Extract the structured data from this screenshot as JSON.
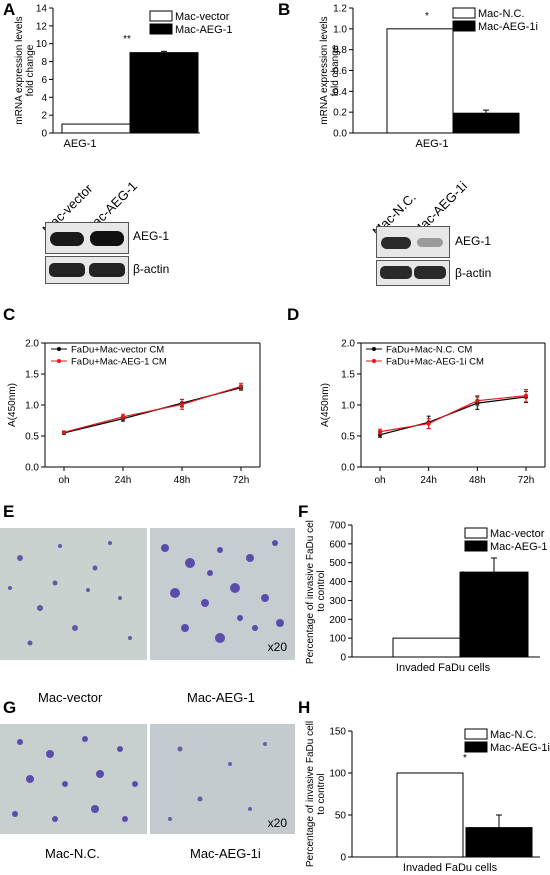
{
  "panels": {
    "A": "A",
    "B": "B",
    "C": "C",
    "D": "D",
    "E": "E",
    "F": "F",
    "G": "G",
    "H": "H"
  },
  "chart_A": {
    "type": "bar",
    "ylabel_1": "mRNA expression levels",
    "ylabel_2": "fold change",
    "xlabel": "AEG-1",
    "ylim": [
      0,
      14
    ],
    "yticks": [
      "0",
      "2",
      "4",
      "6",
      "8",
      "10",
      "12",
      "14"
    ],
    "series": [
      {
        "name": "Mac-vector",
        "value": 1,
        "err": 0
      },
      {
        "name": "Mac-AEG-1",
        "value": 9,
        "err": 0.15
      }
    ],
    "sig": "**"
  },
  "chart_B": {
    "type": "bar",
    "ylabel_1": "mRNA expression levels",
    "ylabel_2": "fold change",
    "xlabel": "AEG-1",
    "ylim": [
      0,
      1.2
    ],
    "yticks": [
      "0.0",
      "0.2",
      "0.4",
      "0.6",
      "0.8",
      "1.0",
      "1.2"
    ],
    "series": [
      {
        "name": "Mac-N.C.",
        "value": 1.0,
        "err": 0
      },
      {
        "name": "Mac-AEG-1i",
        "value": 0.19,
        "err": 0.03
      }
    ],
    "sig": "*"
  },
  "blot_A": {
    "lanes": [
      "Mac-vector",
      "Mac-AEG-1"
    ],
    "rows": [
      "AEG-1",
      "β-actin"
    ]
  },
  "blot_B": {
    "lanes": [
      "Mac-N.C.",
      "Mac-AEG-1i"
    ],
    "rows": [
      "AEG-1",
      "β-actin"
    ]
  },
  "chart_C": {
    "type": "line",
    "ylabel": "A(450nm)",
    "categories": [
      "oh",
      "24h",
      "48h",
      "72h"
    ],
    "ylim": [
      0,
      2.0
    ],
    "yticks": [
      "0.0",
      "0.5",
      "1.0",
      "1.5",
      "2.0"
    ],
    "series": [
      {
        "name": "FaDu+Mac-vector CM",
        "color": "#000000",
        "values": [
          0.55,
          0.78,
          1.03,
          1.28
        ],
        "err": [
          0.02,
          0.04,
          0.06,
          0.04
        ]
      },
      {
        "name": "FaDu+Mac-AEG-1 CM",
        "color": "#e0191c",
        "values": [
          0.56,
          0.81,
          1.01,
          1.3
        ],
        "err": [
          0.02,
          0.04,
          0.08,
          0.05
        ]
      }
    ]
  },
  "chart_D": {
    "type": "line",
    "ylabel": "A(450nm)",
    "categories": [
      "oh",
      "24h",
      "48h",
      "72h"
    ],
    "ylim": [
      0,
      2.0
    ],
    "yticks": [
      "0.0",
      "0.5",
      "1.0",
      "1.5",
      "2.0"
    ],
    "series": [
      {
        "name": "FaDu+Mac-N.C. CM",
        "color": "#000000",
        "values": [
          0.52,
          0.72,
          1.03,
          1.13
        ],
        "err": [
          0.04,
          0.1,
          0.1,
          0.09
        ]
      },
      {
        "name": "FaDu+Mac-AEG-1i CM",
        "color": "#e0191c",
        "values": [
          0.57,
          0.7,
          1.07,
          1.15
        ],
        "err": [
          0.04,
          0.08,
          0.08,
          0.1
        ]
      }
    ]
  },
  "chart_F": {
    "type": "bar",
    "ylabel_1": "Percentage of invasive FaDu cell",
    "ylabel_2": "to control",
    "xlabel": "Invaded FaDu cells",
    "ylim": [
      0,
      700
    ],
    "yticks": [
      "0",
      "100",
      "200",
      "300",
      "400",
      "500",
      "600",
      "700"
    ],
    "series": [
      {
        "name": "Mac-vector",
        "value": 100,
        "err": 0
      },
      {
        "name": "Mac-AEG-1",
        "value": 450,
        "err": 75
      }
    ],
    "sig": "*"
  },
  "chart_H": {
    "type": "bar",
    "ylabel_1": "Percentage of invasive FaDu cell",
    "ylabel_2": "to control",
    "xlabel": "Invaded FaDu cells",
    "ylim": [
      0,
      150
    ],
    "yticks": [
      "0",
      "50",
      "100",
      "150"
    ],
    "series": [
      {
        "name": "Mac-N.C.",
        "value": 100,
        "err": 0
      },
      {
        "name": "Mac-AEG-1i",
        "value": 35,
        "err": 15
      }
    ],
    "sig": "*"
  },
  "micro_E": {
    "left": "Mac-vector",
    "right": "Mac-AEG-1",
    "mag": "x20"
  },
  "micro_G": {
    "left": "Mac-N.C.",
    "right": "Mac-AEG-1i",
    "mag": "x20"
  }
}
